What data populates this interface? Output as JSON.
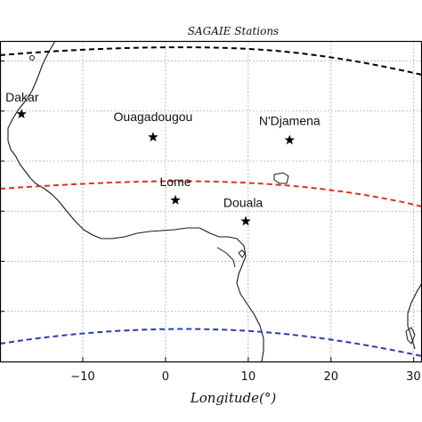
{
  "map": {
    "title": "SAGAIE Stations",
    "xlabel": "Longitude(°)",
    "xlim": [
      -20,
      31
    ],
    "ylim": [
      -10,
      22
    ],
    "x_ticks": [
      {
        "value": -10,
        "label": "−10"
      },
      {
        "value": 0,
        "label": "0"
      },
      {
        "value": 10,
        "label": "10"
      },
      {
        "value": 20,
        "label": "20"
      },
      {
        "value": 30,
        "label": "30"
      }
    ],
    "y_gridlines": [
      -5,
      0,
      5,
      10,
      15,
      20
    ],
    "frame_color": "#000000",
    "grid_color": "#aaaaaa"
  },
  "stations": [
    {
      "id": "dakar",
      "name": "Dakar",
      "lon": -17.4,
      "lat": 14.7
    },
    {
      "id": "ouagadougou",
      "name": "Ouagadougou",
      "lon": -1.5,
      "lat": 12.4
    },
    {
      "id": "ndjamena",
      "name": "N'Djamena",
      "lon": 15.0,
      "lat": 12.1
    },
    {
      "id": "lome",
      "name": "Lome",
      "lon": 1.2,
      "lat": 6.1
    },
    {
      "id": "douala",
      "name": "Douala",
      "lon": 9.7,
      "lat": 4.0
    }
  ],
  "magnetic_lines": [
    {
      "id": "north-dip-line",
      "color": "#000000"
    },
    {
      "id": "magnetic-equator",
      "color": "#e0301e"
    },
    {
      "id": "south-dip-line",
      "color": "#2a3bb5"
    }
  ]
}
